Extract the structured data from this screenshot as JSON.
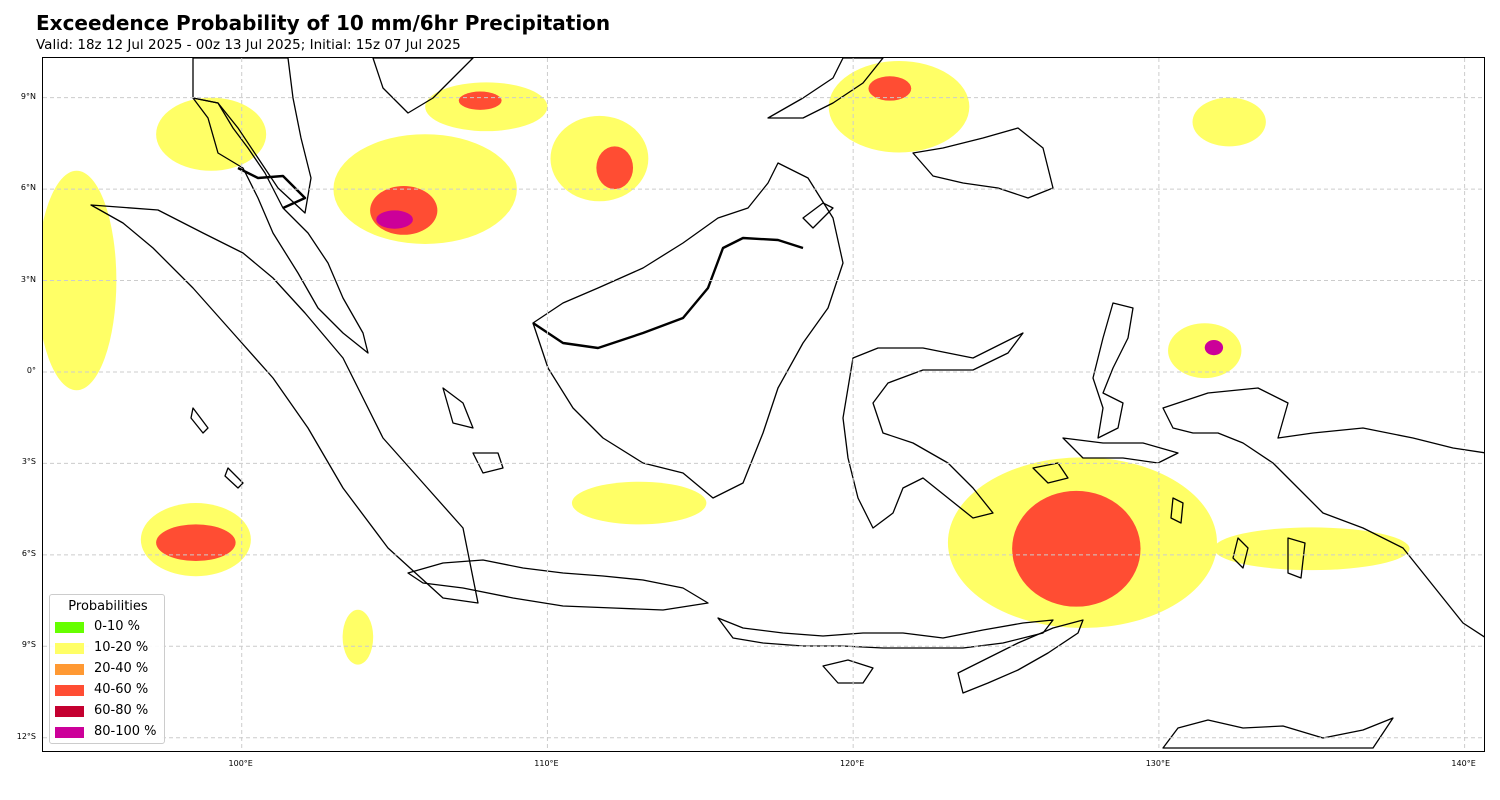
{
  "title": "Exceedence Probability of 10 mm/6hr Precipitation",
  "subtitle": "Valid: 18z 12 Jul 2025 - 00z 13 Jul 2025; Initial: 15z 07 Jul 2025",
  "map": {
    "extent_lon": [
      93.5,
      140.7
    ],
    "extent_lat": [
      -12.5,
      10.3
    ],
    "lat_ticks": [
      {
        "value": 9,
        "label": "9°N"
      },
      {
        "value": 6,
        "label": "6°N"
      },
      {
        "value": 3,
        "label": "3°N"
      },
      {
        "value": 0,
        "label": "0°"
      },
      {
        "value": -3,
        "label": "3°S"
      },
      {
        "value": -6,
        "label": "6°S"
      },
      {
        "value": -9,
        "label": "9°S"
      },
      {
        "value": -12,
        "label": "12°S"
      }
    ],
    "lon_ticks": [
      {
        "value": 100,
        "label": "100°E"
      },
      {
        "value": 110,
        "label": "110°E"
      },
      {
        "value": 120,
        "label": "120°E"
      },
      {
        "value": 130,
        "label": "130°E"
      },
      {
        "value": 140,
        "label": "140°E"
      }
    ],
    "gridlines": true,
    "gridline_color": "#cccccc",
    "coastline_color": "#000000"
  },
  "legend": {
    "title": "Probabilities",
    "placement": "lower-left",
    "items": [
      {
        "label": "0-10 %",
        "color": "#66ff00"
      },
      {
        "label": "10-20 %",
        "color": "#ffff66"
      },
      {
        "label": "20-40 %",
        "color": "#ff9933"
      },
      {
        "label": "40-60 %",
        "color": "#ff4d33"
      },
      {
        "label": "60-80 %",
        "color": "#c40030"
      },
      {
        "label": "80-100 %",
        "color": "#cc0099"
      }
    ]
  },
  "probability_areas": [
    {
      "region": "Andaman Sea north",
      "category": "10-20 %",
      "lon": 99.0,
      "lat": 7.8,
      "rlon": 1.8,
      "rlat": 1.2
    },
    {
      "region": "Indian Ocean west of Sumatra",
      "category": "10-20 %",
      "lon": 94.6,
      "lat": 3.0,
      "rlon": 1.3,
      "rlat": 3.6
    },
    {
      "region": "Gulf of Thailand",
      "category": "10-20 %",
      "lon": 106.0,
      "lat": 6.0,
      "rlon": 3.0,
      "rlat": 1.8
    },
    {
      "region": "Gulf of Thailand",
      "category": "40-60 %",
      "lon": 105.3,
      "lat": 5.3,
      "rlon": 1.1,
      "rlat": 0.8
    },
    {
      "region": "Gulf of Thailand",
      "category": "80-100 %",
      "lon": 105.0,
      "lat": 5.0,
      "rlon": 0.6,
      "rlat": 0.3
    },
    {
      "region": "Gulf of Thailand north",
      "category": "10-20 %",
      "lon": 108.0,
      "lat": 8.7,
      "rlon": 2.0,
      "rlat": 0.8
    },
    {
      "region": "Gulf of Thailand north",
      "category": "40-60 %",
      "lon": 107.8,
      "lat": 8.9,
      "rlon": 0.7,
      "rlat": 0.3
    },
    {
      "region": "South China Sea",
      "category": "10-20 %",
      "lon": 111.7,
      "lat": 7.0,
      "rlon": 1.6,
      "rlat": 1.4
    },
    {
      "region": "South China Sea",
      "category": "40-60 %",
      "lon": 112.2,
      "lat": 6.7,
      "rlon": 0.6,
      "rlat": 0.7
    },
    {
      "region": "Philippines",
      "category": "10-20 %",
      "lon": 121.5,
      "lat": 8.7,
      "rlon": 2.3,
      "rlat": 1.5
    },
    {
      "region": "Philippines",
      "category": "40-60 %",
      "lon": 121.2,
      "lat": 9.3,
      "rlon": 0.7,
      "rlat": 0.4
    },
    {
      "region": "Indian Ocean southwest",
      "category": "10-20 %",
      "lon": 98.5,
      "lat": -5.5,
      "rlon": 1.8,
      "rlat": 1.2
    },
    {
      "region": "Indian Ocean southwest",
      "category": "40-60 %",
      "lon": 98.5,
      "lat": -5.6,
      "rlon": 1.3,
      "rlat": 0.6
    },
    {
      "region": "Banda Sea",
      "category": "10-20 %",
      "lon": 127.5,
      "lat": -5.6,
      "rlon": 4.4,
      "rlat": 2.8
    },
    {
      "region": "Banda Sea",
      "category": "40-60 %",
      "lon": 127.3,
      "lat": -5.8,
      "rlon": 2.1,
      "rlat": 1.9
    },
    {
      "region": "Halmahera",
      "category": "10-20 %",
      "lon": 131.5,
      "lat": 0.7,
      "rlon": 1.2,
      "rlat": 0.9
    },
    {
      "region": "Halmahera",
      "category": "80-100 %",
      "lon": 131.8,
      "lat": 0.8,
      "rlon": 0.3,
      "rlat": 0.25
    },
    {
      "region": "Pacific Ocean",
      "category": "10-20 %",
      "lon": 132.3,
      "lat": 8.2,
      "rlon": 1.2,
      "rlat": 0.8
    },
    {
      "region": "Arafura Sea",
      "category": "10-20 %",
      "lon": 135.0,
      "lat": -5.8,
      "rlon": 3.2,
      "rlat": 0.7
    },
    {
      "region": "Java Sea",
      "category": "10-20 %",
      "lon": 113.0,
      "lat": -4.3,
      "rlon": 2.2,
      "rlat": 0.7
    },
    {
      "region": "Indian Ocean south of Java",
      "category": "10-20 %",
      "lon": 103.8,
      "lat": -8.7,
      "rlon": 0.5,
      "rlat": 0.9
    }
  ]
}
